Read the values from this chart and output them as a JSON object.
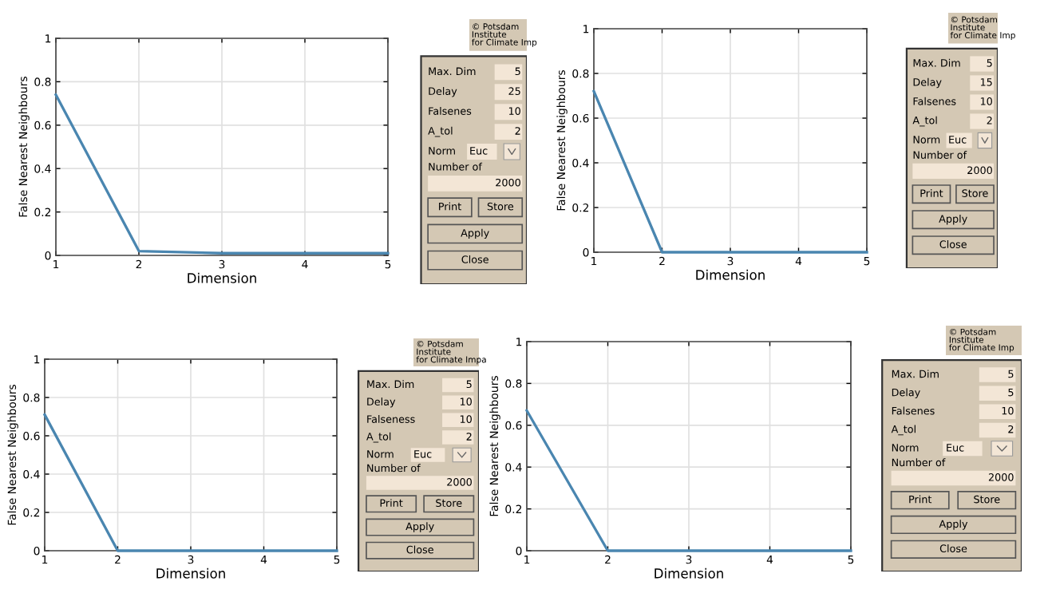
{
  "chart_data": [
    {
      "type": "line",
      "xlabel": "Dimension",
      "ylabel": "False Nearest Neighbours",
      "x": [
        1,
        2,
        3,
        4,
        5
      ],
      "series": [
        {
          "color": "#4a86b0",
          "values": [
            0.74,
            0.02,
            0.01,
            0.01,
            0.01
          ]
        }
      ],
      "xlim": [
        1,
        5
      ],
      "ylim": [
        0,
        1
      ],
      "xticks": [
        1,
        2,
        3,
        4,
        5
      ],
      "yticks": [
        0,
        0.2,
        0.4,
        0.6,
        0.8,
        1
      ],
      "grid": true
    },
    {
      "type": "other",
      "annotations": [
        "© Potsdam\nInstitute\nfor Climate Imp",
        "Max. Dim",
        "5",
        "Delay",
        "25",
        "Falsenes",
        "10",
        "A_tol",
        "2",
        "Norm",
        "Euc",
        "Number of",
        "2000",
        "Print",
        "Store",
        "Apply",
        "Close"
      ]
    },
    {
      "type": "line",
      "xlabel": "Dimension",
      "ylabel": "False Nearest Neighbours",
      "x": [
        1,
        2,
        3,
        4,
        5
      ],
      "series": [
        {
          "color": "#4a86b0",
          "values": [
            0.72,
            0,
            0,
            0,
            0
          ]
        }
      ],
      "xlim": [
        1,
        5
      ],
      "ylim": [
        0,
        1
      ],
      "xticks": [
        1,
        2,
        3,
        4,
        5
      ],
      "yticks": [
        0,
        0.2,
        0.4,
        0.6,
        0.8,
        1
      ],
      "grid": true
    },
    {
      "type": "other",
      "annotations": [
        "© Potsdam\nInstitute\nfor Climate Imp",
        "Max. Dim",
        "5",
        "Delay",
        "15",
        "Falsenes",
        "10",
        "A_tol",
        "2",
        "Norm",
        "Euc",
        "Number of",
        "2000",
        "Print",
        "Store",
        "Apply",
        "Close"
      ]
    },
    {
      "type": "line",
      "xlabel": "Dimension",
      "ylabel": "False Nearest Neighbours",
      "x": [
        1,
        2,
        3,
        4,
        5
      ],
      "series": [
        {
          "color": "#4a86b0",
          "values": [
            0.71,
            0,
            0,
            0,
            0
          ]
        }
      ],
      "xlim": [
        1,
        5
      ],
      "ylim": [
        0,
        1
      ],
      "xticks": [
        1,
        2,
        3,
        4,
        5
      ],
      "yticks": [
        0,
        0.2,
        0.4,
        0.6,
        0.8,
        1
      ],
      "grid": true
    },
    {
      "type": "other",
      "annotations": [
        "© Potsdam\nInstitute\nfor Climate Impa",
        "Max. Dim",
        "5",
        "Delay",
        "10",
        "Falseness",
        "10",
        "A_tol",
        "2",
        "Norm",
        "Euc",
        "Number of",
        "2000",
        "Print",
        "Store",
        "Apply",
        "Close"
      ]
    },
    {
      "type": "line",
      "xlabel": "Dimension",
      "ylabel": "False Nearest Neighbours",
      "x": [
        1,
        2,
        3,
        4,
        5
      ],
      "series": [
        {
          "color": "#4a86b0",
          "values": [
            0.67,
            0,
            0,
            0,
            0
          ]
        }
      ],
      "xlim": [
        1,
        5
      ],
      "ylim": [
        0,
        1
      ],
      "xticks": [
        1,
        2,
        3,
        4,
        5
      ],
      "yticks": [
        0,
        0.2,
        0.4,
        0.6,
        0.8,
        1
      ],
      "grid": true
    },
    {
      "type": "other",
      "annotations": [
        "© Potsdam\nInstitute\nfor Climate Imp",
        "Max. Dim",
        "5",
        "Delay",
        "5",
        "Falsenes",
        "10",
        "A_tol",
        "2",
        "Norm",
        "Euc",
        "Number of",
        "2000",
        "Print",
        "Store",
        "Apply",
        "Close"
      ]
    }
  ]
}
